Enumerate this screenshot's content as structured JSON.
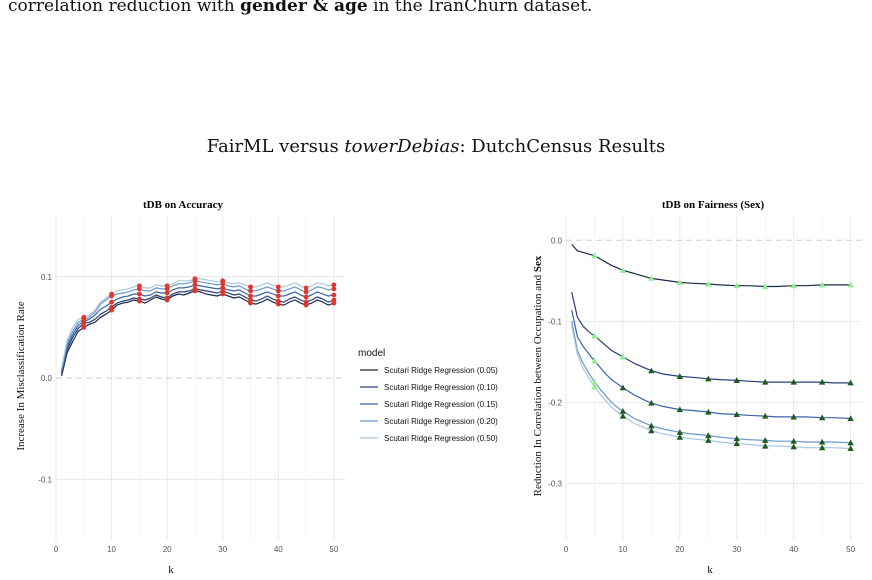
{
  "caption": {
    "prefix": "correlation reduction with ",
    "bold": "gender & age",
    "suffix": " in the IranChurn dataset."
  },
  "figure": {
    "title_prefix": "FairML versus ",
    "title_italic": "towerDebias",
    "title_suffix": ": DutchCensus Results"
  },
  "legend": {
    "title": "model",
    "entries": [
      {
        "label": "Scutari Ridge Regression (0.05)",
        "color": "#1b2a4a"
      },
      {
        "label": "Scutari Ridge Regression (0.10)",
        "color": "#2a3f78"
      },
      {
        "label": "Scutari Ridge Regression (0.15)",
        "color": "#3a63a8"
      },
      {
        "label": "Scutari Ridge Regression (0.20)",
        "color": "#6b98c8"
      },
      {
        "label": "Scutari Ridge Regression (0.50)",
        "color": "#a9c6e2"
      }
    ]
  },
  "chart_data": [
    {
      "type": "line",
      "title": "tDB on Accuracy",
      "xlabel": "k",
      "ylabel": "Increase In Misclassification Rate",
      "xlim": [
        0,
        52
      ],
      "ylim": [
        -0.16,
        0.16
      ],
      "xticks": [
        0,
        10,
        20,
        30,
        40,
        50
      ],
      "yticks": [
        -0.1,
        0.0,
        0.1
      ],
      "ytick_labels": [
        "-0.1",
        "0.0",
        "0.1"
      ],
      "marker_color": "#e0362b",
      "marker_x": [
        5,
        10,
        15,
        20,
        25,
        30,
        35,
        40,
        45,
        50
      ],
      "x": [
        1,
        2,
        3,
        4,
        5,
        6,
        7,
        8,
        9,
        10,
        11,
        12,
        13,
        14,
        15,
        16,
        17,
        18,
        19,
        20,
        21,
        22,
        23,
        24,
        25,
        26,
        27,
        28,
        29,
        30,
        31,
        32,
        33,
        34,
        35,
        36,
        37,
        38,
        39,
        40,
        41,
        42,
        43,
        44,
        45,
        46,
        47,
        48,
        49,
        50
      ],
      "series": [
        {
          "name": "Scutari Ridge Regression (0.05)",
          "values": [
            0.002,
            0.025,
            0.036,
            0.046,
            0.05,
            0.053,
            0.055,
            0.06,
            0.063,
            0.067,
            0.072,
            0.074,
            0.075,
            0.077,
            0.076,
            0.074,
            0.077,
            0.08,
            0.078,
            0.077,
            0.081,
            0.083,
            0.082,
            0.084,
            0.086,
            0.085,
            0.083,
            0.082,
            0.081,
            0.083,
            0.081,
            0.079,
            0.08,
            0.077,
            0.074,
            0.073,
            0.075,
            0.078,
            0.075,
            0.073,
            0.072,
            0.075,
            0.077,
            0.074,
            0.072,
            0.074,
            0.077,
            0.075,
            0.072,
            0.074
          ]
        },
        {
          "name": "Scutari Ridge Regression (0.10)",
          "values": [
            0.004,
            0.028,
            0.04,
            0.049,
            0.054,
            0.055,
            0.058,
            0.063,
            0.066,
            0.07,
            0.074,
            0.076,
            0.077,
            0.079,
            0.078,
            0.077,
            0.079,
            0.082,
            0.08,
            0.079,
            0.083,
            0.085,
            0.085,
            0.086,
            0.088,
            0.087,
            0.086,
            0.085,
            0.084,
            0.086,
            0.084,
            0.082,
            0.083,
            0.08,
            0.077,
            0.076,
            0.078,
            0.081,
            0.078,
            0.076,
            0.075,
            0.078,
            0.08,
            0.077,
            0.075,
            0.077,
            0.08,
            0.078,
            0.075,
            0.077
          ]
        },
        {
          "name": "Scutari Ridge Regression (0.15)",
          "values": [
            0.006,
            0.031,
            0.043,
            0.052,
            0.056,
            0.058,
            0.062,
            0.068,
            0.071,
            0.075,
            0.078,
            0.08,
            0.081,
            0.083,
            0.083,
            0.081,
            0.082,
            0.085,
            0.084,
            0.084,
            0.087,
            0.089,
            0.089,
            0.09,
            0.092,
            0.091,
            0.09,
            0.089,
            0.088,
            0.089,
            0.087,
            0.086,
            0.087,
            0.084,
            0.081,
            0.081,
            0.083,
            0.085,
            0.083,
            0.081,
            0.081,
            0.083,
            0.085,
            0.082,
            0.08,
            0.082,
            0.085,
            0.083,
            0.081,
            0.082
          ]
        },
        {
          "name": "Scutari Ridge Regression (0.20)",
          "values": [
            0.008,
            0.034,
            0.046,
            0.055,
            0.058,
            0.06,
            0.065,
            0.073,
            0.077,
            0.081,
            0.083,
            0.084,
            0.085,
            0.087,
            0.088,
            0.086,
            0.086,
            0.089,
            0.088,
            0.088,
            0.091,
            0.093,
            0.093,
            0.094,
            0.096,
            0.095,
            0.094,
            0.093,
            0.092,
            0.093,
            0.091,
            0.09,
            0.091,
            0.088,
            0.086,
            0.086,
            0.088,
            0.09,
            0.088,
            0.086,
            0.086,
            0.088,
            0.09,
            0.087,
            0.085,
            0.087,
            0.09,
            0.089,
            0.087,
            0.088
          ]
        },
        {
          "name": "Scutari Ridge Regression (0.50)",
          "values": [
            0.01,
            0.037,
            0.05,
            0.058,
            0.06,
            0.062,
            0.067,
            0.075,
            0.079,
            0.083,
            0.086,
            0.087,
            0.088,
            0.09,
            0.091,
            0.089,
            0.089,
            0.092,
            0.091,
            0.091,
            0.093,
            0.096,
            0.096,
            0.096,
            0.098,
            0.098,
            0.097,
            0.096,
            0.095,
            0.096,
            0.094,
            0.093,
            0.094,
            0.092,
            0.09,
            0.09,
            0.092,
            0.094,
            0.092,
            0.09,
            0.09,
            0.092,
            0.094,
            0.091,
            0.089,
            0.091,
            0.094,
            0.093,
            0.091,
            0.092
          ]
        }
      ]
    },
    {
      "type": "line",
      "title": "tDB on Fairness (Sex)",
      "xlabel": "k",
      "ylabel_prefix": "Reduction In Correlation between Occupation and ",
      "ylabel_bold": "Sex",
      "xlim": [
        0,
        52
      ],
      "ylim": [
        -0.37,
        0.03
      ],
      "xticks": [
        0,
        10,
        20,
        30,
        40,
        50
      ],
      "yticks": [
        0.0,
        -0.1,
        -0.2,
        -0.3
      ],
      "ytick_labels": [
        "0.0",
        "-0.1",
        "-0.2",
        "-0.3"
      ],
      "marker_x": [
        5,
        10,
        15,
        20,
        25,
        30,
        35,
        40,
        45,
        50
      ],
      "light_marker_color": "#90ee90",
      "dark_marker_color": "#1f5a1f",
      "x": [
        1,
        2,
        3,
        4,
        5,
        6,
        7,
        8,
        9,
        10,
        12,
        14,
        15,
        17,
        20,
        22,
        25,
        27,
        30,
        32,
        35,
        37,
        40,
        42,
        45,
        47,
        50
      ],
      "series": [
        {
          "name": "Scutari Ridge Regression (0.05)",
          "light_markers": 10,
          "values": [
            -0.005,
            -0.013,
            -0.015,
            -0.017,
            -0.019,
            -0.023,
            -0.027,
            -0.031,
            -0.034,
            -0.037,
            -0.041,
            -0.045,
            -0.047,
            -0.049,
            -0.052,
            -0.053,
            -0.054,
            -0.055,
            -0.056,
            -0.056,
            -0.057,
            -0.057,
            -0.056,
            -0.056,
            -0.055,
            -0.055,
            -0.055
          ]
        },
        {
          "name": "Scutari Ridge Regression (0.10)",
          "light_markers": 2,
          "values": [
            -0.064,
            -0.095,
            -0.106,
            -0.113,
            -0.118,
            -0.124,
            -0.13,
            -0.136,
            -0.14,
            -0.144,
            -0.152,
            -0.158,
            -0.161,
            -0.165,
            -0.168,
            -0.169,
            -0.171,
            -0.172,
            -0.173,
            -0.174,
            -0.175,
            -0.175,
            -0.175,
            -0.175,
            -0.175,
            -0.176,
            -0.176
          ]
        },
        {
          "name": "Scutari Ridge Regression (0.15)",
          "light_markers": 1,
          "values": [
            -0.086,
            -0.119,
            -0.131,
            -0.14,
            -0.149,
            -0.157,
            -0.165,
            -0.172,
            -0.177,
            -0.182,
            -0.191,
            -0.198,
            -0.201,
            -0.205,
            -0.209,
            -0.21,
            -0.212,
            -0.214,
            -0.215,
            -0.216,
            -0.217,
            -0.218,
            -0.218,
            -0.218,
            -0.219,
            -0.219,
            -0.22
          ]
        },
        {
          "name": "Scutari Ridge Regression (0.20)",
          "light_markers": 1,
          "values": [
            -0.1,
            -0.136,
            -0.152,
            -0.164,
            -0.175,
            -0.184,
            -0.192,
            -0.2,
            -0.206,
            -0.211,
            -0.22,
            -0.226,
            -0.229,
            -0.233,
            -0.237,
            -0.239,
            -0.241,
            -0.243,
            -0.245,
            -0.246,
            -0.247,
            -0.248,
            -0.248,
            -0.249,
            -0.249,
            -0.249,
            -0.25
          ]
        },
        {
          "name": "Scutari Ridge Regression (0.50)",
          "light_markers": 1,
          "values": [
            -0.105,
            -0.141,
            -0.158,
            -0.17,
            -0.181,
            -0.19,
            -0.198,
            -0.206,
            -0.212,
            -0.217,
            -0.226,
            -0.232,
            -0.235,
            -0.239,
            -0.243,
            -0.245,
            -0.247,
            -0.249,
            -0.251,
            -0.252,
            -0.254,
            -0.254,
            -0.255,
            -0.256,
            -0.256,
            -0.256,
            -0.257
          ]
        }
      ]
    }
  ]
}
